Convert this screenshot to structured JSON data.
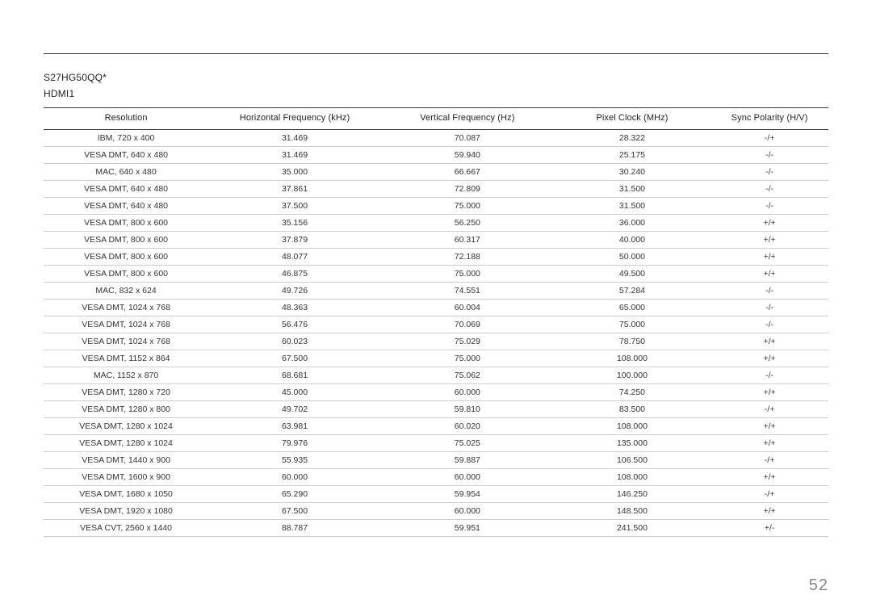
{
  "page_number": "52",
  "header": {
    "model": "S27HG50QQ*",
    "port": "HDMI1"
  },
  "table": {
    "columns": [
      "Resolution",
      "Horizontal Frequency (kHz)",
      "Vertical Frequency (Hz)",
      "Pixel Clock (MHz)",
      "Sync Polarity (H/V)"
    ],
    "rows": [
      [
        "IBM, 720 x 400",
        "31.469",
        "70.087",
        "28.322",
        "-/+"
      ],
      [
        "VESA DMT, 640 x 480",
        "31.469",
        "59.940",
        "25.175",
        "-/-"
      ],
      [
        "MAC, 640 x 480",
        "35.000",
        "66.667",
        "30.240",
        "-/-"
      ],
      [
        "VESA DMT, 640 x 480",
        "37.861",
        "72.809",
        "31.500",
        "-/-"
      ],
      [
        "VESA DMT, 640 x 480",
        "37.500",
        "75.000",
        "31.500",
        "-/-"
      ],
      [
        "VESA DMT, 800 x 600",
        "35.156",
        "56.250",
        "36.000",
        "+/+"
      ],
      [
        "VESA DMT, 800 x 600",
        "37.879",
        "60.317",
        "40.000",
        "+/+"
      ],
      [
        "VESA DMT, 800 x 600",
        "48.077",
        "72.188",
        "50.000",
        "+/+"
      ],
      [
        "VESA DMT, 800 x 600",
        "46.875",
        "75.000",
        "49.500",
        "+/+"
      ],
      [
        "MAC, 832 x 624",
        "49.726",
        "74.551",
        "57.284",
        "-/-"
      ],
      [
        "VESA DMT, 1024 x 768",
        "48.363",
        "60.004",
        "65.000",
        "-/-"
      ],
      [
        "VESA DMT, 1024 x 768",
        "56.476",
        "70.069",
        "75.000",
        "-/-"
      ],
      [
        "VESA DMT, 1024 x 768",
        "60.023",
        "75.029",
        "78.750",
        "+/+"
      ],
      [
        "VESA DMT, 1152 x 864",
        "67.500",
        "75.000",
        "108.000",
        "+/+"
      ],
      [
        "MAC, 1152 x 870",
        "68.681",
        "75.062",
        "100.000",
        "-/-"
      ],
      [
        "VESA DMT, 1280 x 720",
        "45.000",
        "60.000",
        "74.250",
        "+/+"
      ],
      [
        "VESA DMT, 1280 x 800",
        "49.702",
        "59.810",
        "83.500",
        "-/+"
      ],
      [
        "VESA DMT, 1280 x 1024",
        "63.981",
        "60.020",
        "108.000",
        "+/+"
      ],
      [
        "VESA DMT, 1280 x 1024",
        "79.976",
        "75.025",
        "135.000",
        "+/+"
      ],
      [
        "VESA DMT, 1440 x 900",
        "55.935",
        "59.887",
        "106.500",
        "-/+"
      ],
      [
        "VESA DMT, 1600 x 900",
        "60.000",
        "60.000",
        "108.000",
        "+/+"
      ],
      [
        "VESA DMT, 1680 x 1050",
        "65.290",
        "59.954",
        "146.250",
        "-/+"
      ],
      [
        "VESA DMT, 1920 x 1080",
        "67.500",
        "60.000",
        "148.500",
        "+/+"
      ],
      [
        "VESA CVT, 2560 x 1440",
        "88.787",
        "59.951",
        "241.500",
        "+/-"
      ]
    ]
  },
  "style": {
    "background_color": "#ffffff",
    "text_color": "#222222",
    "rule_color": "#333333",
    "row_border_color": "#cccccc",
    "page_num_color": "#888888",
    "header_font_size_pt": 11,
    "body_font_size_pt": 10.5,
    "page_num_font_size_pt": 20
  }
}
